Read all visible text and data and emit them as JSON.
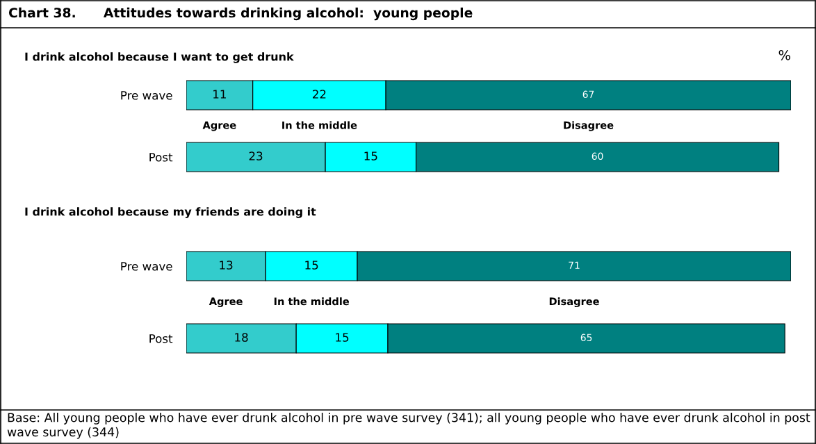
{
  "chart_data": [
    {
      "type": "bar",
      "orientation": "horizontal",
      "stacked": true,
      "data_labels": true,
      "legend": false,
      "grid": false,
      "tick_labels": "y",
      "title": "Chart 38.      Attitudes towards drinking alcohol:  young people",
      "subtitle": "I drink alcohol because I want to get drunk",
      "annotations": [
        "%"
      ],
      "categories": [
        "Pre wave",
        "Post"
      ],
      "series": [
        {
          "name": "Agree",
          "color": "#33cccc",
          "values": [
            11,
            23
          ]
        },
        {
          "name": "In the middle",
          "color": "#00ffff",
          "values": [
            22,
            15
          ]
        },
        {
          "name": "Disagree",
          "color": "#008080",
          "values": [
            67,
            60
          ]
        }
      ]
    },
    {
      "type": "bar",
      "orientation": "horizontal",
      "stacked": true,
      "data_labels": true,
      "legend": false,
      "grid": false,
      "tick_labels": "y",
      "subtitle": "I drink alcohol because my friends are doing it",
      "annotations": [
        "Base: All young people who have ever drunk alcohol in pre wave survey (341); all young people who have ever drunk alcohol in post wave survey (344)"
      ],
      "categories": [
        "Pre wave",
        "Post"
      ],
      "series": [
        {
          "name": "Agree",
          "color": "#33cccc",
          "values": [
            13,
            18
          ]
        },
        {
          "name": "In the middle",
          "color": "#00ffff",
          "values": [
            15,
            15
          ]
        },
        {
          "name": "Disagree",
          "color": "#008080",
          "values": [
            71,
            65
          ]
        }
      ]
    }
  ]
}
